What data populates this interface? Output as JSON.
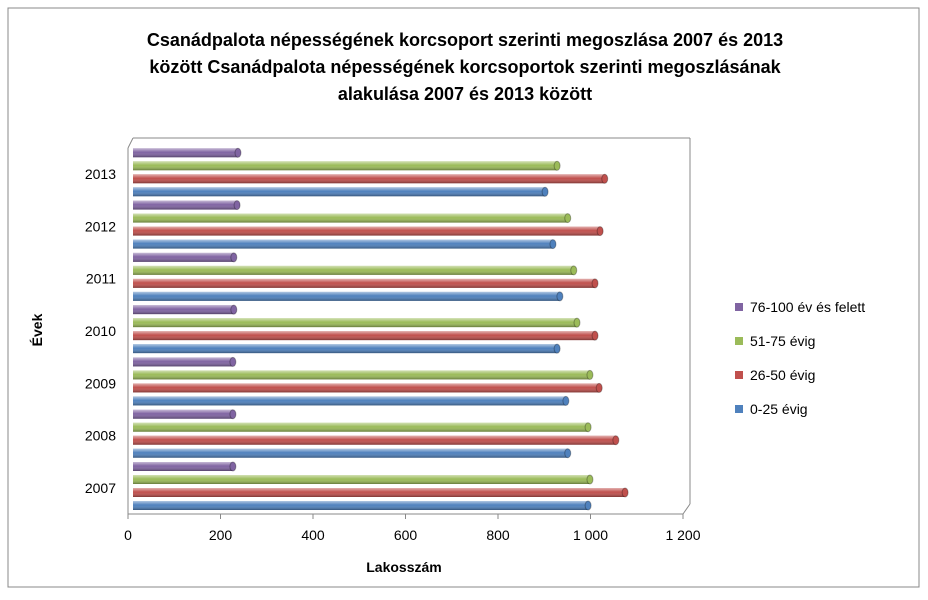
{
  "chart_data": {
    "type": "bar",
    "orientation": "horizontal",
    "title": [
      "Csanádpalota népességének korcsoport szerinti megoszlása 2007 és 2013",
      "között Csanádpalota  népességének korcsoportok szerinti megoszlásának",
      "alakulása 2007 és 2013 között"
    ],
    "x_label": "Lakosszám",
    "y_label": "Évek",
    "categories": [
      "2007",
      "2008",
      "2009",
      "2010",
      "2011",
      "2012",
      "2013"
    ],
    "series": [
      {
        "name": "0-25 évig",
        "color": "#4f81bd",
        "values": [
          984,
          940,
          936,
          917,
          923,
          908,
          891
        ]
      },
      {
        "name": "26-50 évig",
        "color": "#c0504d",
        "values": [
          1064,
          1044,
          1008,
          999,
          999,
          1010,
          1020
        ]
      },
      {
        "name": "51-75 évig",
        "color": "#9bbb59",
        "values": [
          988,
          984,
          988,
          960,
          953,
          940,
          917
        ]
      },
      {
        "name": "76-100 év és felett",
        "color": "#8064a2",
        "values": [
          216,
          216,
          216,
          218,
          218,
          225,
          227
        ]
      }
    ],
    "xlim": [
      0,
      1200
    ],
    "xticks": [
      0,
      200,
      400,
      600,
      800,
      {
        "value": 1000,
        "label": "1 000"
      },
      {
        "value": 1200,
        "label": "1 200"
      }
    ],
    "legend": "right",
    "grid": false
  }
}
